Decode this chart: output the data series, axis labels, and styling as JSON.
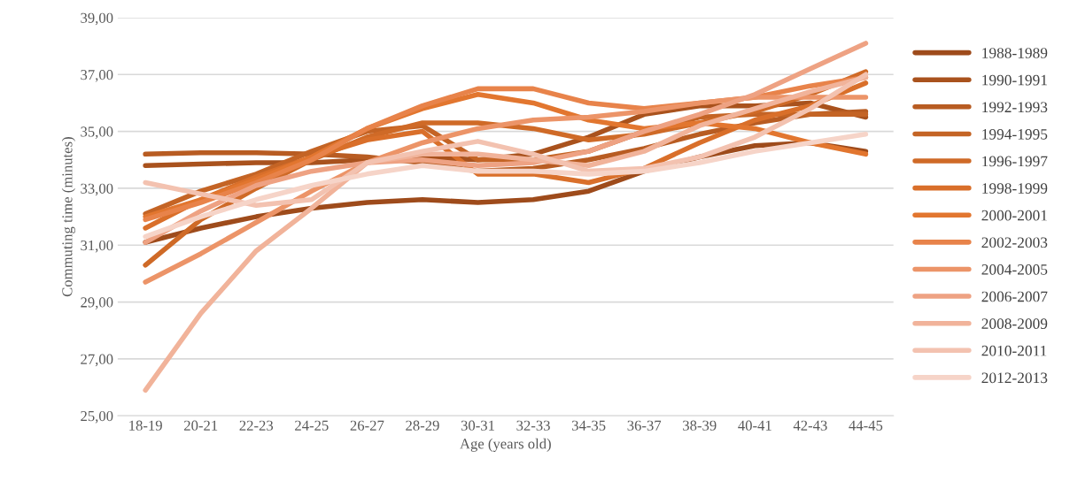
{
  "chart_data": {
    "type": "line",
    "xlabel": "Age (years old)",
    "ylabel": "Commuting time (minutes)",
    "categories": [
      "18-19",
      "20-21",
      "22-23",
      "24-25",
      "26-27",
      "28-29",
      "30-31",
      "32-33",
      "34-35",
      "36-37",
      "38-39",
      "40-41",
      "42-43",
      "44-45"
    ],
    "series": [
      {
        "name": "1988-1989",
        "color": "#9e4b1b",
        "values": [
          31.1,
          31.6,
          32.0,
          32.3,
          32.5,
          32.6,
          32.5,
          32.6,
          32.9,
          33.6,
          34.1,
          34.5,
          34.6,
          34.3
        ]
      },
      {
        "name": "1990-1991",
        "color": "#a9521d",
        "values": [
          33.8,
          33.85,
          33.9,
          33.9,
          34.0,
          34.1,
          34.0,
          34.2,
          34.8,
          35.6,
          35.9,
          35.9,
          36.0,
          35.5
        ]
      },
      {
        "name": "1992-1993",
        "color": "#b85c22",
        "values": [
          34.2,
          34.25,
          34.25,
          34.2,
          34.1,
          33.9,
          33.6,
          33.7,
          34.0,
          34.4,
          34.9,
          35.3,
          35.6,
          35.7
        ]
      },
      {
        "name": "1994-1995",
        "color": "#c46425",
        "values": [
          32.1,
          32.9,
          33.5,
          34.3,
          35.0,
          35.2,
          34.0,
          34.0,
          34.3,
          35.0,
          35.5,
          35.6,
          35.6,
          35.6
        ]
      },
      {
        "name": "1996-1997",
        "color": "#cf6a27",
        "values": [
          30.3,
          31.9,
          33.0,
          34.0,
          34.8,
          35.3,
          35.3,
          35.1,
          34.7,
          34.9,
          35.3,
          35.7,
          36.3,
          37.1
        ]
      },
      {
        "name": "1998-1999",
        "color": "#d96f2a",
        "values": [
          31.6,
          32.6,
          33.4,
          34.1,
          34.7,
          35.0,
          33.5,
          33.5,
          33.2,
          33.7,
          34.6,
          35.4,
          35.9,
          36.7
        ]
      },
      {
        "name": "2000-2001",
        "color": "#e2762f",
        "values": [
          32.0,
          32.6,
          33.3,
          34.1,
          35.1,
          35.8,
          36.3,
          36.0,
          35.4,
          35.1,
          35.3,
          35.1,
          34.6,
          34.2
        ]
      },
      {
        "name": "2002-2003",
        "color": "#e8834a",
        "values": [
          31.9,
          32.5,
          33.2,
          34.0,
          35.1,
          35.9,
          36.5,
          36.5,
          36.0,
          35.8,
          36.0,
          36.2,
          36.6,
          36.9
        ]
      },
      {
        "name": "2004-2005",
        "color": "#ec9468",
        "values": [
          29.7,
          30.7,
          31.8,
          32.9,
          33.9,
          34.6,
          35.1,
          35.4,
          35.5,
          35.7,
          36.0,
          36.2,
          36.2,
          36.2
        ]
      },
      {
        "name": "2006-2007",
        "color": "#eea283",
        "values": [
          31.1,
          32.2,
          33.1,
          33.6,
          33.9,
          34.0,
          33.8,
          33.9,
          34.3,
          35.0,
          35.6,
          36.3,
          37.2,
          38.1
        ]
      },
      {
        "name": "2008-2009",
        "color": "#f1b39a",
        "values": [
          25.9,
          28.6,
          30.8,
          32.3,
          33.9,
          34.2,
          34.2,
          34.0,
          33.8,
          34.3,
          35.2,
          35.8,
          36.4,
          36.9
        ]
      },
      {
        "name": "2010-2011",
        "color": "#f3c2b0",
        "values": [
          33.2,
          32.8,
          32.4,
          32.6,
          33.9,
          34.3,
          34.65,
          34.2,
          33.6,
          33.7,
          34.1,
          34.8,
          35.8,
          37.0
        ]
      },
      {
        "name": "2012-2013",
        "color": "#f6d4c8",
        "values": [
          31.3,
          32.0,
          32.6,
          33.1,
          33.5,
          33.8,
          33.6,
          33.6,
          33.5,
          33.6,
          33.9,
          34.3,
          34.6,
          34.9
        ]
      }
    ],
    "ylim": [
      25,
      39
    ],
    "yticks": [
      {
        "value": 25,
        "label": "25,00"
      },
      {
        "value": 27,
        "label": "27,00"
      },
      {
        "value": 29,
        "label": "29,00"
      },
      {
        "value": 31,
        "label": "31,00"
      },
      {
        "value": 33,
        "label": "33,00"
      },
      {
        "value": 35,
        "label": "35,00"
      },
      {
        "value": 37,
        "label": "37,00"
      },
      {
        "value": 39,
        "label": "39,00"
      }
    ],
    "grid": "y",
    "legend": "right",
    "marker": "none",
    "line_style": "solid"
  }
}
